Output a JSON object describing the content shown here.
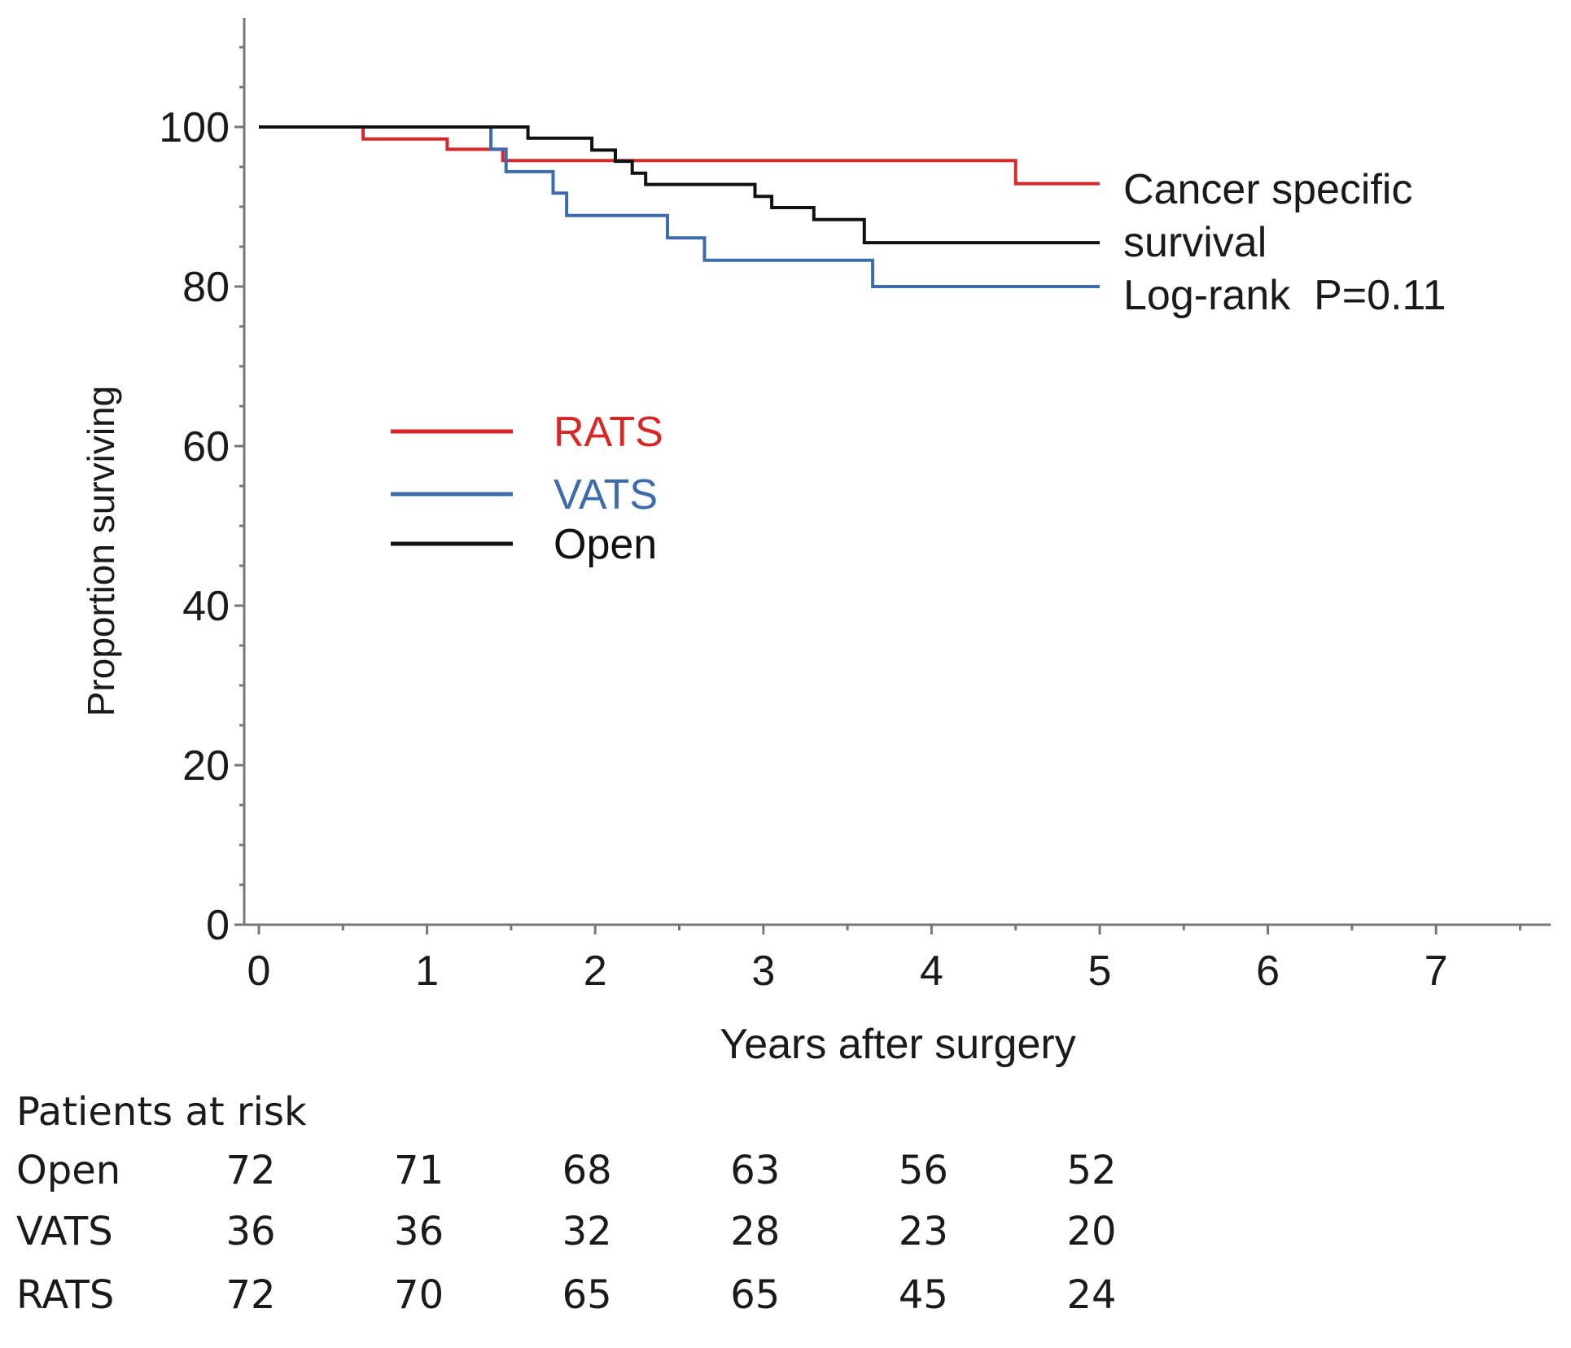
{
  "chart_data": {
    "type": "line",
    "subtype": "kaplan-meier step",
    "xlabel": "Years after surgery",
    "ylabel": "Proportion surviving",
    "xlim": [
      0,
      7.7
    ],
    "ylim": [
      0,
      110
    ],
    "x_ticks": [
      "0",
      "1",
      "2",
      "3",
      "4",
      "5",
      "6",
      "7"
    ],
    "y_ticks": [
      "0",
      "20",
      "40",
      "60",
      "80",
      "100"
    ],
    "annotations": [
      "Cancer specific",
      "survival",
      "Log-rank  P=0.11"
    ],
    "legend_position": "center-left",
    "series": [
      {
        "name": "RATS",
        "color": "#d92626",
        "points": [
          [
            0,
            100
          ],
          [
            0.62,
            100
          ],
          [
            0.62,
            98.5
          ],
          [
            1.12,
            98.5
          ],
          [
            1.12,
            97.2
          ],
          [
            1.45,
            97.2
          ],
          [
            1.45,
            95.8
          ],
          [
            4.5,
            95.8
          ],
          [
            4.5,
            92.9
          ],
          [
            5.0,
            92.9
          ]
        ]
      },
      {
        "name": "VATS",
        "color": "#3d6cae",
        "points": [
          [
            0,
            100
          ],
          [
            1.38,
            100
          ],
          [
            1.38,
            97.2
          ],
          [
            1.47,
            97.2
          ],
          [
            1.47,
            94.4
          ],
          [
            1.75,
            94.4
          ],
          [
            1.75,
            91.7
          ],
          [
            1.83,
            91.7
          ],
          [
            1.83,
            88.9
          ],
          [
            2.43,
            88.9
          ],
          [
            2.43,
            86.1
          ],
          [
            2.65,
            86.1
          ],
          [
            2.65,
            83.3
          ],
          [
            3.65,
            83.3
          ],
          [
            3.65,
            80.0
          ],
          [
            5.0,
            80.0
          ]
        ]
      },
      {
        "name": "Open",
        "color": "#111111",
        "points": [
          [
            0,
            100
          ],
          [
            1.6,
            100
          ],
          [
            1.6,
            98.6
          ],
          [
            1.98,
            98.6
          ],
          [
            1.98,
            97.1
          ],
          [
            2.12,
            97.1
          ],
          [
            2.12,
            95.7
          ],
          [
            2.22,
            95.7
          ],
          [
            2.22,
            94.2
          ],
          [
            2.3,
            94.2
          ],
          [
            2.3,
            92.8
          ],
          [
            2.95,
            92.8
          ],
          [
            2.95,
            91.3
          ],
          [
            3.05,
            91.3
          ],
          [
            3.05,
            89.9
          ],
          [
            3.3,
            89.9
          ],
          [
            3.3,
            88.4
          ],
          [
            3.6,
            88.4
          ],
          [
            3.6,
            85.5
          ],
          [
            5.0,
            85.5
          ]
        ]
      }
    ]
  },
  "risk_table": {
    "title": "Patients at risk",
    "rows": [
      {
        "name": "Open",
        "values": [
          "72",
          "71",
          "68",
          "63",
          "56",
          "52"
        ]
      },
      {
        "name": "VATS",
        "values": [
          "36",
          "36",
          "32",
          "28",
          "23",
          "20"
        ]
      },
      {
        "name": "RATS",
        "values": [
          "72",
          "70",
          "65",
          "65",
          "45",
          "24"
        ]
      }
    ]
  },
  "colors": {
    "axis": "#777777",
    "ylabel": "#3d5a80"
  }
}
